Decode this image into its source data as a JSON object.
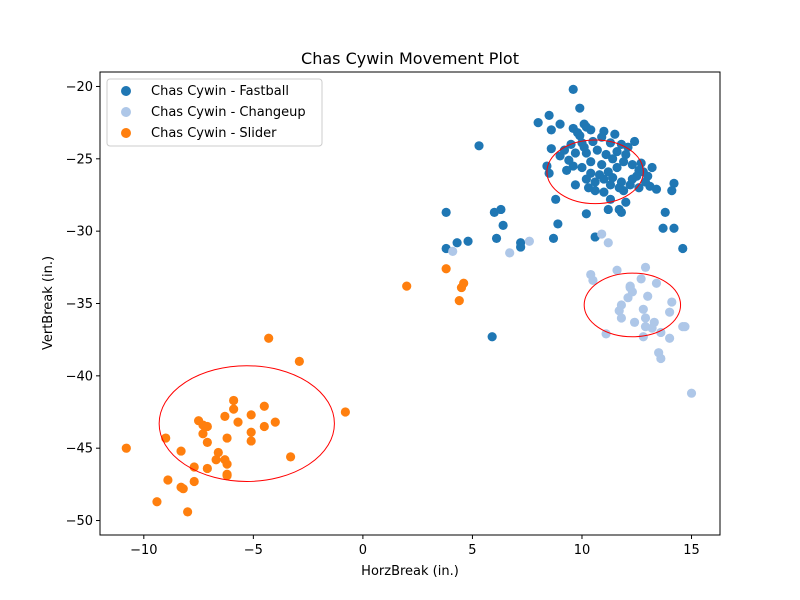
{
  "chart_data": {
    "type": "scatter",
    "title": "Chas Cywin Movement Plot",
    "xlabel": "HorzBreak (in.)",
    "ylabel": "VertBreak (in.)",
    "xlim": [
      -12.0,
      16.3
    ],
    "ylim": [
      -51.0,
      -19.0
    ],
    "xticks": [
      -10,
      -5,
      0,
      5,
      10,
      15
    ],
    "yticks": [
      -50,
      -45,
      -40,
      -35,
      -30,
      -25,
      -20
    ],
    "xtick_labels": [
      "−10",
      "−5",
      "0",
      "5",
      "10",
      "15"
    ],
    "ytick_labels": [
      "−50",
      "−45",
      "−40",
      "−35",
      "−30",
      "−25",
      "−20"
    ],
    "grid": false,
    "legend_position": "upper-left",
    "ellipse_color": "#ff0000",
    "series": [
      {
        "name": "Chas Cywin - Fastball",
        "color": "#1f77b4",
        "ellipse": {
          "cx": 10.6,
          "cy": -25.9,
          "w": 4.4,
          "h": 4.4
        },
        "points": [
          [
            9.6,
            -20.2
          ],
          [
            9.9,
            -21.5
          ],
          [
            8.5,
            -22.0
          ],
          [
            8.0,
            -22.5
          ],
          [
            9.0,
            -22.6
          ],
          [
            10.1,
            -22.6
          ],
          [
            9.6,
            -22.9
          ],
          [
            9.8,
            -23.2
          ],
          [
            10.4,
            -23.0
          ],
          [
            11.0,
            -23.1
          ],
          [
            10.2,
            -22.8
          ],
          [
            8.6,
            -23.0
          ],
          [
            10.9,
            -23.5
          ],
          [
            11.5,
            -23.3
          ],
          [
            12.4,
            -23.8
          ],
          [
            12.1,
            -24.2
          ],
          [
            11.8,
            -24.0
          ],
          [
            11.3,
            -23.9
          ],
          [
            10.5,
            -23.8
          ],
          [
            10.0,
            -23.9
          ],
          [
            9.5,
            -24.0
          ],
          [
            9.2,
            -24.4
          ],
          [
            8.6,
            -24.3
          ],
          [
            9.0,
            -24.8
          ],
          [
            9.4,
            -25.1
          ],
          [
            9.7,
            -24.6
          ],
          [
            10.2,
            -24.6
          ],
          [
            10.7,
            -24.4
          ],
          [
            11.1,
            -24.7
          ],
          [
            11.4,
            -25.0
          ],
          [
            11.9,
            -25.2
          ],
          [
            12.3,
            -25.4
          ],
          [
            12.6,
            -25.8
          ],
          [
            13.0,
            -26.2
          ],
          [
            13.2,
            -25.6
          ],
          [
            11.6,
            -25.6
          ],
          [
            11.2,
            -25.9
          ],
          [
            10.8,
            -26.1
          ],
          [
            10.4,
            -26.0
          ],
          [
            10.0,
            -25.6
          ],
          [
            9.6,
            -25.5
          ],
          [
            9.3,
            -25.8
          ],
          [
            8.5,
            -26.0
          ],
          [
            8.4,
            -25.5
          ],
          [
            10.2,
            -26.4
          ],
          [
            10.6,
            -26.6
          ],
          [
            11.0,
            -26.4
          ],
          [
            11.4,
            -26.3
          ],
          [
            11.8,
            -26.6
          ],
          [
            12.2,
            -26.8
          ],
          [
            11.9,
            -27.2
          ],
          [
            12.6,
            -27.0
          ],
          [
            13.1,
            -26.9
          ],
          [
            13.4,
            -27.1
          ],
          [
            14.2,
            -26.7
          ],
          [
            14.1,
            -27.2
          ],
          [
            12.0,
            -28.0
          ],
          [
            11.3,
            -27.8
          ],
          [
            11.2,
            -28.5
          ],
          [
            11.7,
            -28.5
          ],
          [
            11.8,
            -28.7
          ],
          [
            10.2,
            -28.8
          ],
          [
            13.8,
            -28.7
          ],
          [
            9.7,
            -26.8
          ],
          [
            8.8,
            -27.8
          ],
          [
            10.6,
            -27.2
          ],
          [
            12.5,
            -26.2
          ],
          [
            12.8,
            -25.9
          ],
          [
            12.3,
            -26.4
          ],
          [
            11.7,
            -27.0
          ],
          [
            11.0,
            -27.3
          ],
          [
            10.3,
            -27.0
          ],
          [
            12.0,
            -24.7
          ],
          [
            11.6,
            -24.5
          ],
          [
            10.4,
            -25.2
          ],
          [
            10.9,
            -25.4
          ],
          [
            12.9,
            -26.6
          ],
          [
            12.7,
            -25.3
          ],
          [
            11.3,
            -26.8
          ],
          [
            10.1,
            -24.2
          ],
          [
            9.9,
            -23.4
          ],
          [
            5.3,
            -24.1
          ],
          [
            3.8,
            -28.7
          ],
          [
            3.8,
            -31.2
          ],
          [
            4.3,
            -30.8
          ],
          [
            4.8,
            -30.7
          ],
          [
            6.0,
            -28.7
          ],
          [
            6.3,
            -28.5
          ],
          [
            6.1,
            -30.5
          ],
          [
            6.4,
            -29.6
          ],
          [
            7.2,
            -30.8
          ],
          [
            7.2,
            -31.1
          ],
          [
            8.7,
            -30.5
          ],
          [
            8.9,
            -29.5
          ],
          [
            10.6,
            -30.4
          ],
          [
            13.7,
            -29.8
          ],
          [
            14.2,
            -29.8
          ],
          [
            14.6,
            -31.2
          ],
          [
            5.9,
            -37.3
          ]
        ]
      },
      {
        "name": "Chas Cywin - Changeup",
        "color": "#aec7e8",
        "ellipse": {
          "cx": 12.3,
          "cy": -35.1,
          "w": 4.4,
          "h": 4.4
        },
        "points": [
          [
            4.1,
            -31.4
          ],
          [
            6.7,
            -31.5
          ],
          [
            7.6,
            -30.7
          ],
          [
            10.9,
            -30.2
          ],
          [
            11.2,
            -30.8
          ],
          [
            10.5,
            -33.4
          ],
          [
            10.4,
            -33.0
          ],
          [
            11.6,
            -32.7
          ],
          [
            12.2,
            -33.8
          ],
          [
            12.3,
            -34.2
          ],
          [
            12.1,
            -34.6
          ],
          [
            11.8,
            -35.1
          ],
          [
            11.7,
            -35.5
          ],
          [
            11.8,
            -36.0
          ],
          [
            12.4,
            -36.3
          ],
          [
            12.9,
            -36.0
          ],
          [
            12.8,
            -35.4
          ],
          [
            13.0,
            -34.5
          ],
          [
            12.7,
            -33.3
          ],
          [
            12.9,
            -32.5
          ],
          [
            13.4,
            -33.6
          ],
          [
            12.2,
            -33.9
          ],
          [
            13.3,
            -36.3
          ],
          [
            13.2,
            -36.7
          ],
          [
            13.6,
            -37.0
          ],
          [
            13.5,
            -38.4
          ],
          [
            13.6,
            -38.8
          ],
          [
            14.0,
            -35.6
          ],
          [
            14.1,
            -34.9
          ],
          [
            14.6,
            -36.6
          ],
          [
            14.7,
            -36.6
          ],
          [
            14.0,
            -37.4
          ],
          [
            11.1,
            -37.1
          ],
          [
            12.9,
            -36.6
          ],
          [
            12.8,
            -37.3
          ],
          [
            15.0,
            -41.2
          ]
        ]
      },
      {
        "name": "Chas Cywin - Slider",
        "color": "#ff7f0e",
        "ellipse": {
          "cx": -5.3,
          "cy": -43.3,
          "w": 8.0,
          "h": 8.0
        },
        "points": [
          [
            -10.8,
            -45.0
          ],
          [
            -9.0,
            -44.3
          ],
          [
            -8.3,
            -45.2
          ],
          [
            -7.5,
            -43.1
          ],
          [
            -7.3,
            -43.4
          ],
          [
            -7.1,
            -43.5
          ],
          [
            -7.3,
            -44.0
          ],
          [
            -7.1,
            -44.6
          ],
          [
            -6.6,
            -45.3
          ],
          [
            -6.7,
            -45.8
          ],
          [
            -6.3,
            -45.8
          ],
          [
            -6.2,
            -46.1
          ],
          [
            -6.2,
            -44.3
          ],
          [
            -6.3,
            -42.8
          ],
          [
            -5.9,
            -41.7
          ],
          [
            -5.9,
            -42.3
          ],
          [
            -5.7,
            -43.2
          ],
          [
            -5.1,
            -42.7
          ],
          [
            -4.5,
            -42.1
          ],
          [
            -4.5,
            -43.5
          ],
          [
            -5.1,
            -43.9
          ],
          [
            -5.1,
            -44.5
          ],
          [
            -4.0,
            -43.2
          ],
          [
            -4.3,
            -37.4
          ],
          [
            -2.9,
            -39.0
          ],
          [
            -3.3,
            -45.6
          ],
          [
            -0.8,
            -42.5
          ],
          [
            -7.1,
            -46.4
          ],
          [
            -6.2,
            -46.9
          ],
          [
            -6.2,
            -46.8
          ],
          [
            -7.7,
            -46.3
          ],
          [
            -7.7,
            -47.3
          ],
          [
            -8.3,
            -47.7
          ],
          [
            -8.2,
            -47.8
          ],
          [
            -8.9,
            -47.2
          ],
          [
            -9.4,
            -48.7
          ],
          [
            -8.0,
            -49.4
          ],
          [
            3.8,
            -32.6
          ],
          [
            2.0,
            -33.8
          ],
          [
            4.5,
            -33.9
          ],
          [
            4.6,
            -33.6
          ],
          [
            4.4,
            -34.8
          ]
        ]
      }
    ]
  }
}
